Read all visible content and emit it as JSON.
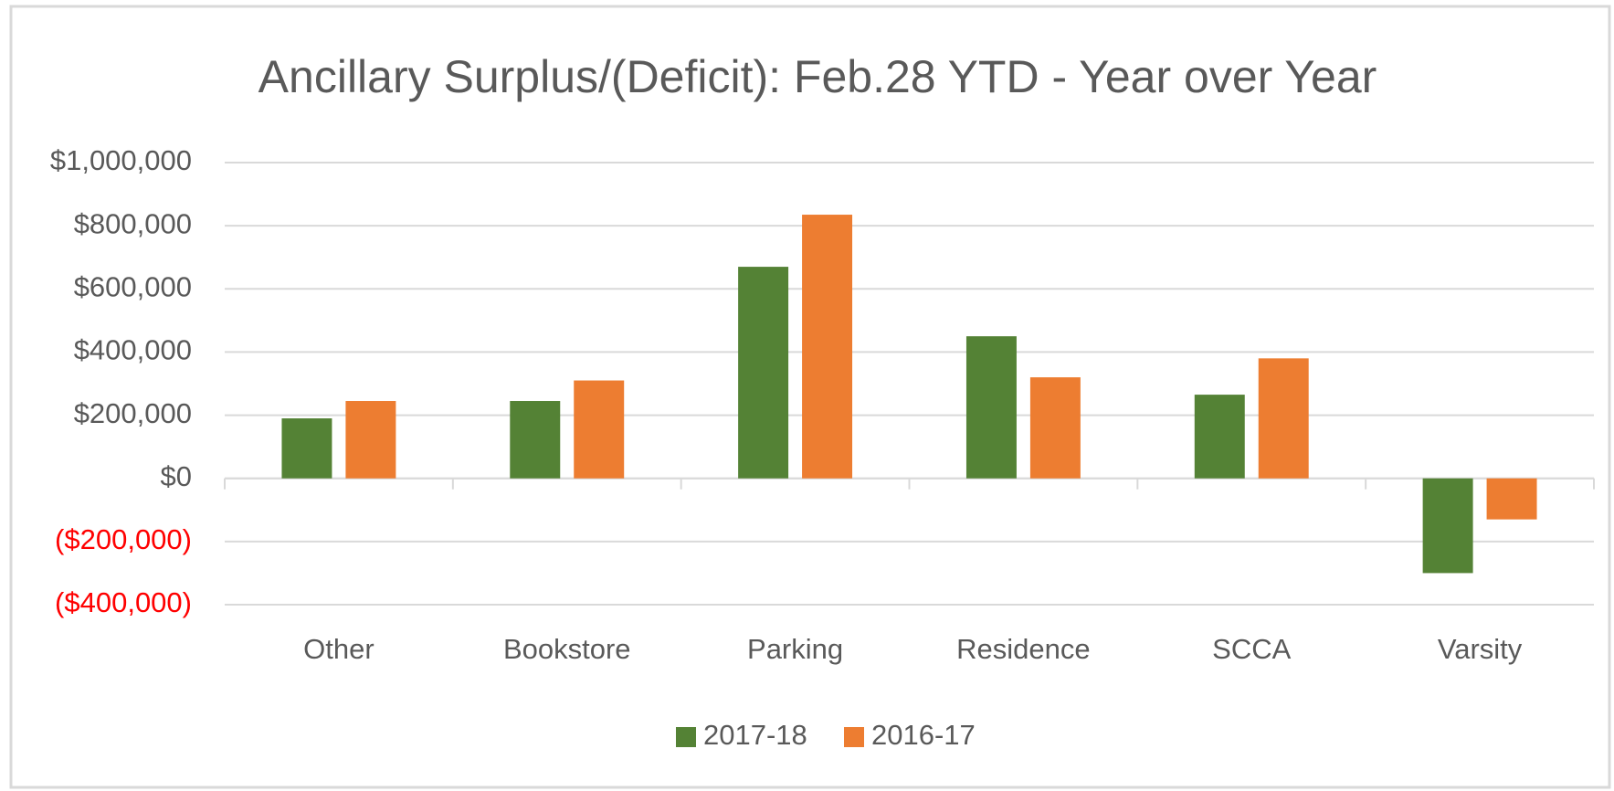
{
  "chart_data": {
    "type": "bar",
    "title": "Ancillary Surplus/(Deficit): Feb.28 YTD - Year over Year",
    "categories": [
      "Other",
      "Bookstore",
      "Parking",
      "Residence",
      "SCCA",
      "Varsity"
    ],
    "series": [
      {
        "name": "2017-18",
        "color": "#548235",
        "values": [
          190000,
          245000,
          670000,
          450000,
          265000,
          -300000
        ]
      },
      {
        "name": "2016-17",
        "color": "#ed7d31",
        "values": [
          245000,
          310000,
          835000,
          320000,
          380000,
          -130000
        ]
      }
    ],
    "ylim": [
      -400000,
      1000000
    ],
    "yticks": [
      {
        "value": -400000,
        "label": "($400,000)"
      },
      {
        "value": -200000,
        "label": "($200,000)"
      },
      {
        "value": 0,
        "label": "$0"
      },
      {
        "value": 200000,
        "label": "$200,000"
      },
      {
        "value": 400000,
        "label": "$400,000"
      },
      {
        "value": 600000,
        "label": "$600,000"
      },
      {
        "value": 800000,
        "label": "$800,000"
      },
      {
        "value": 1000000,
        "label": "$1,000,000"
      }
    ],
    "negative_tick_color": "#ff0000",
    "grid": true,
    "legend": "bottom"
  }
}
